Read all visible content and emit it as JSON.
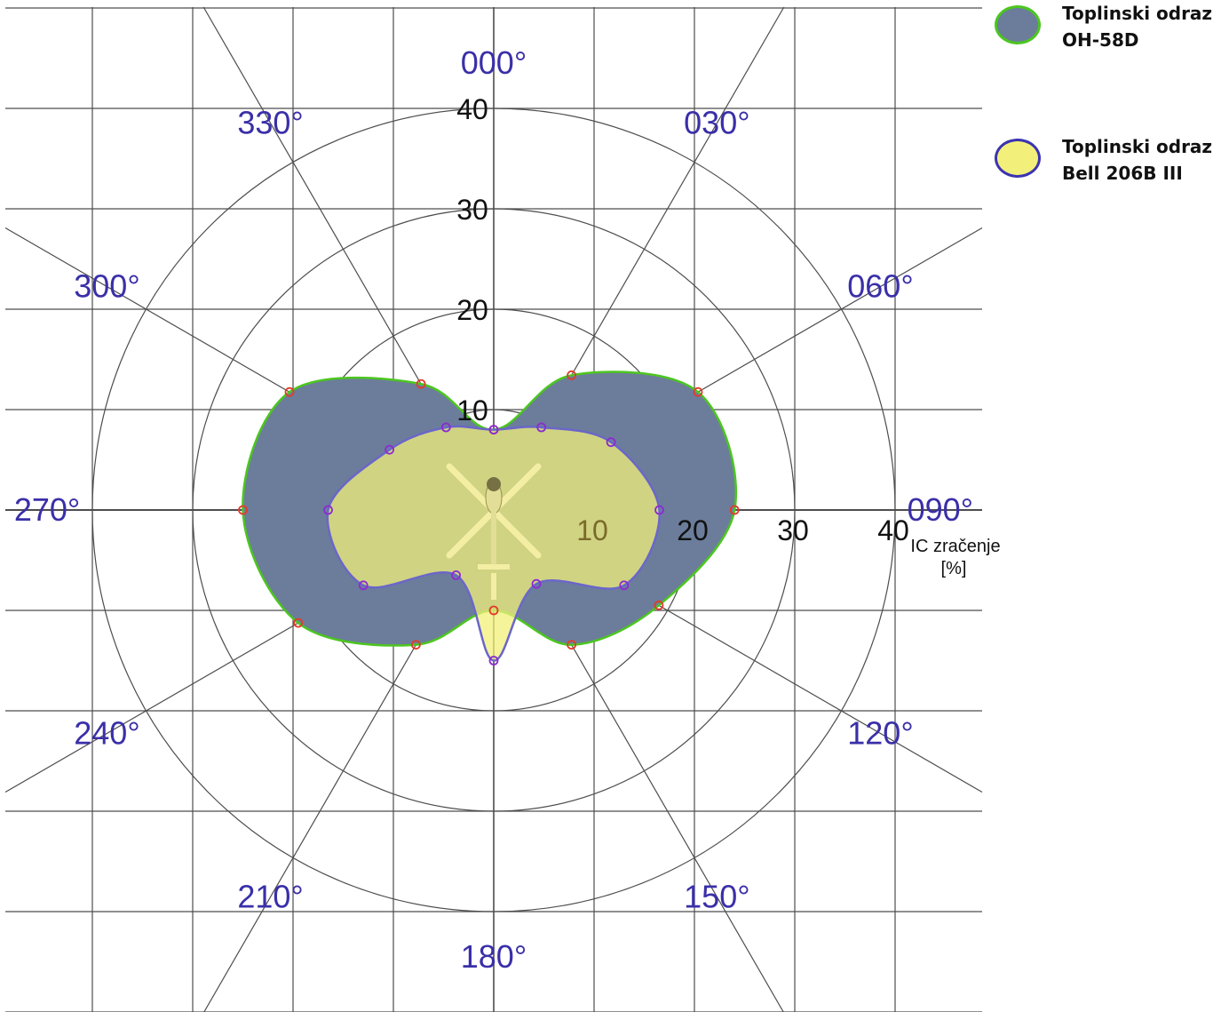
{
  "chart_data": {
    "type": "polar-area",
    "angle_unit": "deg",
    "angle_labels": [
      "000°",
      "030°",
      "060°",
      "090°",
      "120°",
      "150°",
      "180°",
      "210°",
      "240°",
      "270°",
      "300°",
      "330°"
    ],
    "radial_ticks": [
      "10",
      "20",
      "30",
      "40"
    ],
    "rlim": [
      0,
      40
    ],
    "axis_label": [
      "IC zračenje",
      "[%]"
    ],
    "grid": true,
    "legend": "top-right",
    "series": [
      {
        "name": [
          "Toplinski odraz",
          "OH-58D"
        ],
        "fill": "#6b7d9b",
        "stroke": "#4cc61f",
        "marker_color": "#e23b2a",
        "points": [
          {
            "angle": 0,
            "value": 8
          },
          {
            "angle": 30,
            "value": 15.5
          },
          {
            "angle": 60,
            "value": 23.5
          },
          {
            "angle": 90,
            "value": 24
          },
          {
            "angle": 120,
            "value": 19
          },
          {
            "angle": 150,
            "value": 15.5
          },
          {
            "angle": 180,
            "value": 10
          },
          {
            "angle": 210,
            "value": 15.5
          },
          {
            "angle": 240,
            "value": 22.5
          },
          {
            "angle": 270,
            "value": 25
          },
          {
            "angle": 300,
            "value": 23.5
          },
          {
            "angle": 330,
            "value": 14.5
          }
        ]
      },
      {
        "name": [
          "Toplinski odraz",
          "Bell 206B III"
        ],
        "fill": "#f2f07a",
        "stroke": "#6b66c9",
        "marker_color": "#8c2bd0",
        "points": [
          {
            "angle": 0,
            "value": 8
          },
          {
            "angle": 30,
            "value": 9.5
          },
          {
            "angle": 60,
            "value": 13.5
          },
          {
            "angle": 90,
            "value": 16.5
          },
          {
            "angle": 120,
            "value": 15
          },
          {
            "angle": 150,
            "value": 8.5
          },
          {
            "angle": 180,
            "value": 15
          },
          {
            "angle": 210,
            "value": 7.5
          },
          {
            "angle": 240,
            "value": 15
          },
          {
            "angle": 270,
            "value": 16.5
          },
          {
            "angle": 300,
            "value": 12
          },
          {
            "angle": 330,
            "value": 9.5
          }
        ]
      }
    ]
  },
  "colors": {
    "grid": "#4d4d4d",
    "angle_label": "#3a2fa8",
    "tick_label": "#111111",
    "background": "#ffffff"
  }
}
